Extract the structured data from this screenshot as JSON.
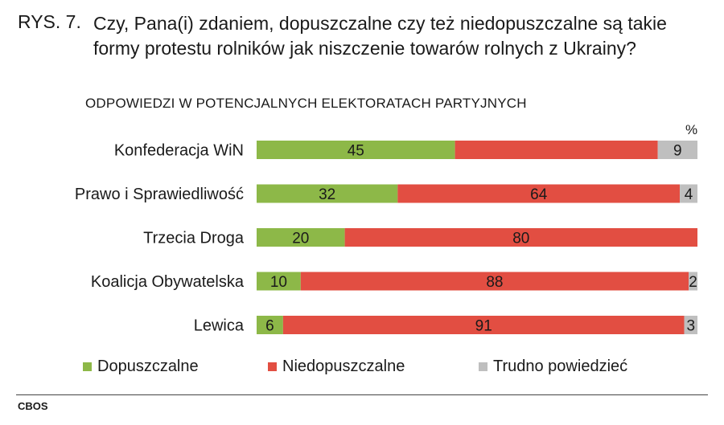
{
  "header": {
    "prefix": "RYS. 7.",
    "title": "Czy, Pana(i) zdaniem, dopuszczalne czy też niedopuszczalne są takie formy protestu rolników jak niszczenie towarów rolnych z Ukrainy?",
    "subtitle": "ODPOWIEDZI W POTENCJALNYCH ELEKTORATACH PARTYJNYCH",
    "unit": "%"
  },
  "footer": {
    "source": "CBOS"
  },
  "colors": {
    "dopuszczalne": "#8db848",
    "niedopuszczalne": "#e24e42",
    "trudno": "#bfbfbf"
  },
  "chart_data": {
    "type": "bar",
    "orientation": "horizontal",
    "stacked": true,
    "categories": [
      "Konfederacja WiN",
      "Prawo i Sprawiedliwość",
      "Trzecia Droga",
      "Koalicja Obywatelska",
      "Lewica"
    ],
    "series": [
      {
        "name": "Dopuszczalne",
        "values": [
          45,
          32,
          20,
          10,
          6
        ]
      },
      {
        "name": "Niedopuszczalne",
        "values": [
          46,
          64,
          80,
          88,
          91
        ]
      },
      {
        "name": "Trudno powiedzieć",
        "values": [
          9,
          4,
          0,
          2,
          3
        ]
      }
    ],
    "data_labels": [
      [
        "45",
        "32",
        "20",
        "10",
        "6"
      ],
      [
        "",
        "64",
        "80",
        "88",
        "91"
      ],
      [
        "9",
        "4",
        "",
        "2",
        "3"
      ]
    ],
    "xlim": [
      0,
      100
    ],
    "legend_position": "bottom"
  }
}
